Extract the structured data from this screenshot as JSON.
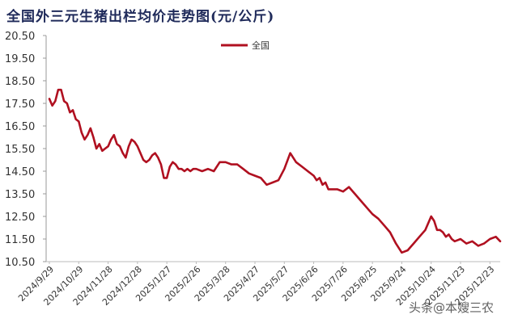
{
  "chart_data": {
    "type": "line",
    "title": "全国外三元生猪出栏均价走势图(元/公斤)",
    "xlabel": "",
    "ylabel": "元/公斤",
    "ylim": [
      10.5,
      20.5
    ],
    "yticks": [
      "20.50",
      "19.50",
      "18.50",
      "17.50",
      "16.50",
      "15.50",
      "14.50",
      "13.50",
      "12.50",
      "11.50",
      "10.50"
    ],
    "xticks": [
      "2024/9/29",
      "2024/10/29",
      "2024/11/28",
      "2024/12/28",
      "2025/1/27",
      "2025/2/26",
      "2025/3/28",
      "2025/4/27",
      "2025/5/27",
      "2025/6/26",
      "2025/7/26",
      "2025/8/25",
      "2025/9/24",
      "2025/10/24",
      "2025/11/23",
      "2025/12/23"
    ],
    "grid": false,
    "legend_position": "top-center",
    "series": [
      {
        "name": "全国",
        "color": "#b01020",
        "x_index": [
          0,
          0.1,
          0.2,
          0.3,
          0.4,
          0.5,
          0.6,
          0.7,
          0.8,
          0.9,
          1.0,
          1.1,
          1.2,
          1.3,
          1.4,
          1.5,
          1.6,
          1.7,
          1.8,
          1.9,
          2.0,
          2.1,
          2.2,
          2.3,
          2.4,
          2.5,
          2.6,
          2.7,
          2.8,
          2.9,
          3.0,
          3.1,
          3.2,
          3.3,
          3.4,
          3.5,
          3.6,
          3.7,
          3.8,
          3.9,
          4.0,
          4.1,
          4.2,
          4.3,
          4.4,
          4.5,
          4.6,
          4.7,
          4.8,
          4.9,
          5.0,
          5.2,
          5.4,
          5.6,
          5.8,
          6.0,
          6.2,
          6.4,
          6.6,
          6.8,
          7.0,
          7.2,
          7.4,
          7.6,
          7.8,
          8.0,
          8.2,
          8.4,
          8.6,
          8.8,
          9.0,
          9.1,
          9.2,
          9.3,
          9.4,
          9.5,
          9.6,
          9.8,
          10.0,
          10.2,
          10.4,
          10.6,
          10.8,
          11.0,
          11.2,
          11.4,
          11.6,
          11.8,
          12.0,
          12.2,
          12.4,
          12.6,
          12.8,
          13.0,
          13.1,
          13.2,
          13.3,
          13.4,
          13.5,
          13.6,
          13.7,
          13.8,
          14.0,
          14.2,
          14.4,
          14.6,
          14.8,
          15.0,
          15.2,
          15.35
        ],
        "values": [
          17.7,
          17.4,
          17.6,
          18.1,
          18.1,
          17.6,
          17.5,
          17.1,
          17.2,
          16.8,
          16.7,
          16.2,
          15.9,
          16.1,
          16.4,
          16.0,
          15.5,
          15.7,
          15.4,
          15.5,
          15.6,
          15.9,
          16.1,
          15.7,
          15.6,
          15.3,
          15.1,
          15.6,
          15.9,
          15.8,
          15.6,
          15.3,
          15.0,
          14.9,
          15.0,
          15.2,
          15.3,
          15.1,
          14.8,
          14.2,
          14.2,
          14.7,
          14.9,
          14.8,
          14.6,
          14.6,
          14.5,
          14.6,
          14.5,
          14.6,
          14.6,
          14.5,
          14.6,
          14.5,
          14.9,
          14.9,
          14.8,
          14.8,
          14.6,
          14.4,
          14.3,
          14.2,
          13.9,
          14.0,
          14.1,
          14.6,
          15.3,
          14.9,
          14.7,
          14.5,
          14.3,
          14.1,
          14.2,
          13.9,
          14.0,
          13.7,
          13.7,
          13.7,
          13.6,
          13.8,
          13.5,
          13.2,
          12.9,
          12.6,
          12.4,
          12.1,
          11.8,
          11.3,
          10.9,
          11.0,
          11.3,
          11.6,
          11.9,
          12.5,
          12.3,
          11.9,
          11.9,
          11.8,
          11.6,
          11.7,
          11.5,
          11.4,
          11.5,
          11.3,
          11.4,
          11.2,
          11.3,
          11.5,
          11.6,
          11.4
        ]
      }
    ]
  },
  "legend": {
    "label": "全国"
  },
  "watermark": "头条@本嫂三农"
}
